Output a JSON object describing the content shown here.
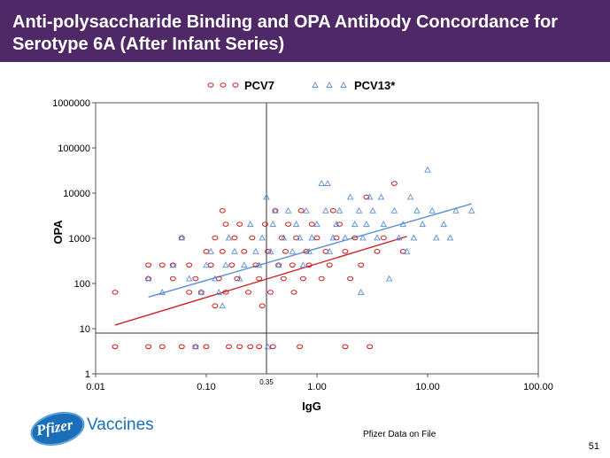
{
  "slide": {
    "title": "Anti-polysaccharide Binding and OPA Antibody Concordance for Serotype 6A (After Infant Series)",
    "brand": "Vaccines",
    "logo_text": "Pfizer",
    "source_note": "Pfizer Data on File",
    "slide_number": "51",
    "colors": {
      "title_bg": "#4f2868",
      "pcv7": "#cc2222",
      "pcv13": "#5b8fd6",
      "brand": "#1a6fb8"
    }
  },
  "chart_data": {
    "type": "scatter",
    "title": "",
    "xlabel": "IgG",
    "ylabel": "OPA",
    "xscale": "log",
    "yscale": "log",
    "xlim": [
      0.01,
      100
    ],
    "ylim": [
      1,
      1000000
    ],
    "x_ticks": [
      "0.01",
      "0.10",
      "1.00",
      "10.00",
      "100.00"
    ],
    "y_ticks": [
      "1",
      "10",
      "100",
      "1000",
      "10000",
      "100000",
      "1000000"
    ],
    "reference_lines": {
      "x": 0.35,
      "x_label": "0.35",
      "y": 8
    },
    "legend": {
      "position": "top"
    },
    "series": [
      {
        "name": "PCV7",
        "marker": "circle",
        "color": "#cc2222",
        "points": [
          [
            0.015,
            64
          ],
          [
            0.015,
            4
          ],
          [
            0.03,
            4
          ],
          [
            0.03,
            256
          ],
          [
            0.03,
            128
          ],
          [
            0.04,
            256
          ],
          [
            0.04,
            4
          ],
          [
            0.05,
            128
          ],
          [
            0.05,
            256
          ],
          [
            0.06,
            4
          ],
          [
            0.06,
            1024
          ],
          [
            0.07,
            64
          ],
          [
            0.07,
            256
          ],
          [
            0.08,
            4
          ],
          [
            0.08,
            128
          ],
          [
            0.09,
            64
          ],
          [
            0.1,
            512
          ],
          [
            0.1,
            4
          ],
          [
            0.11,
            256
          ],
          [
            0.12,
            32
          ],
          [
            0.12,
            1024
          ],
          [
            0.13,
            128
          ],
          [
            0.14,
            4096
          ],
          [
            0.14,
            512
          ],
          [
            0.15,
            2048
          ],
          [
            0.15,
            64
          ],
          [
            0.16,
            4
          ],
          [
            0.17,
            256
          ],
          [
            0.18,
            1024
          ],
          [
            0.19,
            128
          ],
          [
            0.2,
            4
          ],
          [
            0.2,
            2048
          ],
          [
            0.22,
            512
          ],
          [
            0.24,
            64
          ],
          [
            0.25,
            4
          ],
          [
            0.26,
            1024
          ],
          [
            0.28,
            256
          ],
          [
            0.3,
            4
          ],
          [
            0.3,
            128
          ],
          [
            0.32,
            32
          ],
          [
            0.34,
            2048
          ],
          [
            0.36,
            512
          ],
          [
            0.38,
            64
          ],
          [
            0.4,
            4
          ],
          [
            0.42,
            4096
          ],
          [
            0.45,
            256
          ],
          [
            0.48,
            1024
          ],
          [
            0.5,
            128
          ],
          [
            0.52,
            512
          ],
          [
            0.55,
            2048
          ],
          [
            0.6,
            256
          ],
          [
            0.62,
            64
          ],
          [
            0.65,
            1024
          ],
          [
            0.7,
            4
          ],
          [
            0.72,
            4096
          ],
          [
            0.75,
            128
          ],
          [
            0.8,
            512
          ],
          [
            0.85,
            256
          ],
          [
            0.9,
            2048
          ],
          [
            1.0,
            1024
          ],
          [
            1.1,
            128
          ],
          [
            1.2,
            512
          ],
          [
            1.3,
            256
          ],
          [
            1.4,
            4096
          ],
          [
            1.5,
            1024
          ],
          [
            1.6,
            2048
          ],
          [
            1.8,
            4
          ],
          [
            1.8,
            512
          ],
          [
            2.0,
            128
          ],
          [
            2.2,
            1024
          ],
          [
            2.5,
            256
          ],
          [
            2.8,
            8192
          ],
          [
            3.0,
            4
          ],
          [
            3.5,
            512
          ],
          [
            4.0,
            1024
          ],
          [
            5.0,
            16384
          ],
          [
            6.0,
            512
          ]
        ]
      },
      {
        "name": "PCV13*",
        "marker": "triangle",
        "color": "#5b8fd6",
        "points": [
          [
            0.03,
            128
          ],
          [
            0.04,
            64
          ],
          [
            0.05,
            256
          ],
          [
            0.06,
            1024
          ],
          [
            0.07,
            128
          ],
          [
            0.08,
            4
          ],
          [
            0.09,
            64
          ],
          [
            0.1,
            256
          ],
          [
            0.11,
            512
          ],
          [
            0.12,
            128
          ],
          [
            0.13,
            64
          ],
          [
            0.14,
            32
          ],
          [
            0.15,
            256
          ],
          [
            0.16,
            1024
          ],
          [
            0.18,
            512
          ],
          [
            0.2,
            128
          ],
          [
            0.22,
            256
          ],
          [
            0.25,
            2048
          ],
          [
            0.28,
            512
          ],
          [
            0.3,
            256
          ],
          [
            0.32,
            1024
          ],
          [
            0.35,
            8192
          ],
          [
            0.36,
            4
          ],
          [
            0.38,
            512
          ],
          [
            0.4,
            2048
          ],
          [
            0.42,
            4096
          ],
          [
            0.45,
            256
          ],
          [
            0.5,
            1024
          ],
          [
            0.55,
            4096
          ],
          [
            0.6,
            512
          ],
          [
            0.65,
            2048
          ],
          [
            0.7,
            1024
          ],
          [
            0.75,
            256
          ],
          [
            0.8,
            4096
          ],
          [
            0.85,
            512
          ],
          [
            0.9,
            1024
          ],
          [
            1.0,
            2048
          ],
          [
            1.1,
            16384
          ],
          [
            1.2,
            4096
          ],
          [
            1.25,
            16384
          ],
          [
            1.3,
            512
          ],
          [
            1.4,
            1024
          ],
          [
            1.5,
            2048
          ],
          [
            1.6,
            4096
          ],
          [
            1.8,
            1024
          ],
          [
            2.0,
            8192
          ],
          [
            2.2,
            2048
          ],
          [
            2.4,
            4096
          ],
          [
            2.5,
            64
          ],
          [
            2.6,
            1024
          ],
          [
            2.8,
            2048
          ],
          [
            3.0,
            8192
          ],
          [
            3.2,
            4096
          ],
          [
            3.5,
            1024
          ],
          [
            3.8,
            8192
          ],
          [
            4.0,
            2048
          ],
          [
            4.5,
            128
          ],
          [
            5.0,
            4096
          ],
          [
            5.5,
            1024
          ],
          [
            6.0,
            2048
          ],
          [
            6.5,
            512
          ],
          [
            7.0,
            8192
          ],
          [
            7.5,
            1024
          ],
          [
            8.0,
            4096
          ],
          [
            9.0,
            2048
          ],
          [
            10.0,
            32768
          ],
          [
            11.0,
            4096
          ],
          [
            12.0,
            1024
          ],
          [
            14.0,
            2048
          ],
          [
            16.0,
            1024
          ],
          [
            18.0,
            4096
          ],
          [
            25.0,
            4096
          ]
        ]
      }
    ],
    "trend_lines": [
      {
        "name": "PCV7 fit",
        "color": "#cc2222",
        "from": [
          0.015,
          12
        ],
        "to": [
          6.5,
          1100
        ]
      },
      {
        "name": "PCV13 fit",
        "color": "#5b8fd6",
        "from": [
          0.03,
          50
        ],
        "to": [
          25,
          5800
        ]
      }
    ]
  }
}
